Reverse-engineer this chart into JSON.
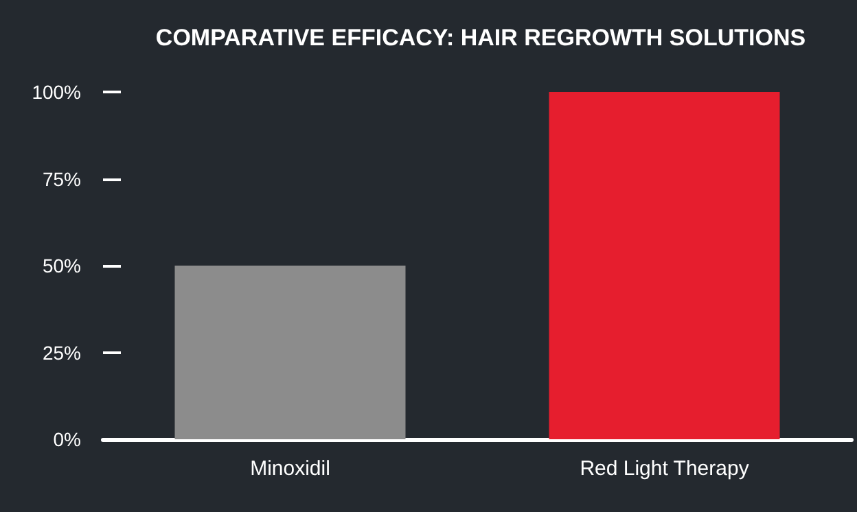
{
  "chart_data": {
    "type": "bar",
    "title": "COMPARATIVE EFFICACY: HAIR REGROWTH SOLUTIONS",
    "categories": [
      "Minoxidil",
      "Red Light Therapy"
    ],
    "values": [
      50,
      100
    ],
    "colors": [
      "#8c8c8c",
      "#e61e2e"
    ],
    "ylim": [
      0,
      100
    ],
    "yticks": [
      {
        "value": 0,
        "label": "0%"
      },
      {
        "value": 25,
        "label": "25%"
      },
      {
        "value": 50,
        "label": "50%"
      },
      {
        "value": 75,
        "label": "75%"
      },
      {
        "value": 100,
        "label": "100%"
      }
    ],
    "grid": false
  }
}
